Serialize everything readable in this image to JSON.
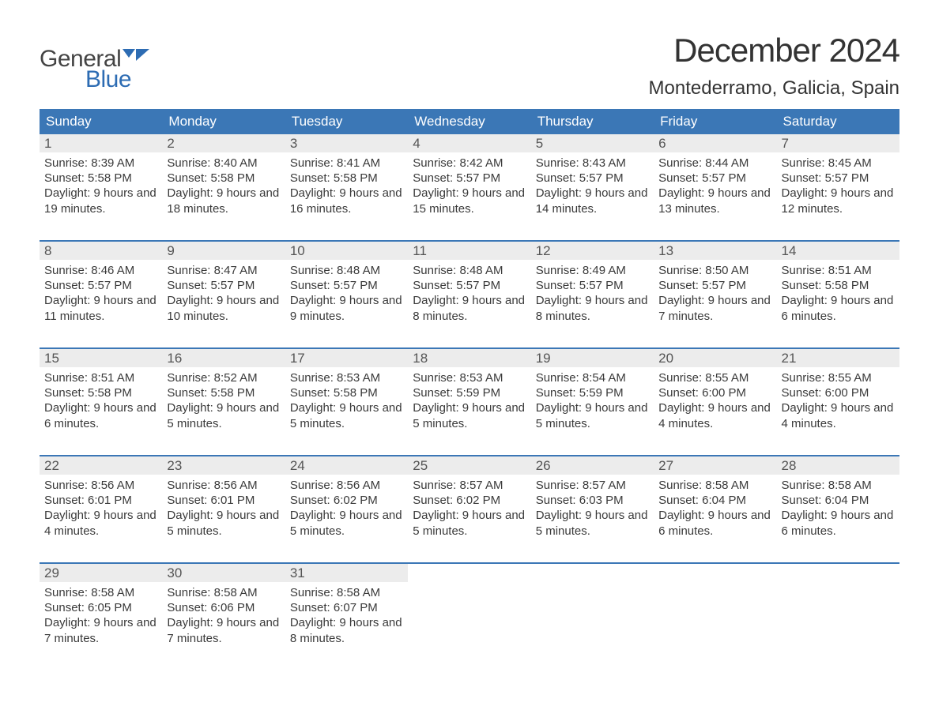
{
  "brand": {
    "text_general": "General",
    "text_blue": "Blue",
    "flag_color": "#2d6cb3"
  },
  "title": "December 2024",
  "location": "Montederramo, Galicia, Spain",
  "colors": {
    "header_bg": "#3b77b6",
    "header_text": "#ffffff",
    "daynum_bg": "#ececec",
    "week_border": "#3b77b6",
    "body_text": "#3a3a3a"
  },
  "day_names": [
    "Sunday",
    "Monday",
    "Tuesday",
    "Wednesday",
    "Thursday",
    "Friday",
    "Saturday"
  ],
  "weeks": [
    [
      {
        "n": 1,
        "sunrise": "8:39 AM",
        "sunset": "5:58 PM",
        "daylight": "9 hours and 19 minutes."
      },
      {
        "n": 2,
        "sunrise": "8:40 AM",
        "sunset": "5:58 PM",
        "daylight": "9 hours and 18 minutes."
      },
      {
        "n": 3,
        "sunrise": "8:41 AM",
        "sunset": "5:58 PM",
        "daylight": "9 hours and 16 minutes."
      },
      {
        "n": 4,
        "sunrise": "8:42 AM",
        "sunset": "5:57 PM",
        "daylight": "9 hours and 15 minutes."
      },
      {
        "n": 5,
        "sunrise": "8:43 AM",
        "sunset": "5:57 PM",
        "daylight": "9 hours and 14 minutes."
      },
      {
        "n": 6,
        "sunrise": "8:44 AM",
        "sunset": "5:57 PM",
        "daylight": "9 hours and 13 minutes."
      },
      {
        "n": 7,
        "sunrise": "8:45 AM",
        "sunset": "5:57 PM",
        "daylight": "9 hours and 12 minutes."
      }
    ],
    [
      {
        "n": 8,
        "sunrise": "8:46 AM",
        "sunset": "5:57 PM",
        "daylight": "9 hours and 11 minutes."
      },
      {
        "n": 9,
        "sunrise": "8:47 AM",
        "sunset": "5:57 PM",
        "daylight": "9 hours and 10 minutes."
      },
      {
        "n": 10,
        "sunrise": "8:48 AM",
        "sunset": "5:57 PM",
        "daylight": "9 hours and 9 minutes."
      },
      {
        "n": 11,
        "sunrise": "8:48 AM",
        "sunset": "5:57 PM",
        "daylight": "9 hours and 8 minutes."
      },
      {
        "n": 12,
        "sunrise": "8:49 AM",
        "sunset": "5:57 PM",
        "daylight": "9 hours and 8 minutes."
      },
      {
        "n": 13,
        "sunrise": "8:50 AM",
        "sunset": "5:57 PM",
        "daylight": "9 hours and 7 minutes."
      },
      {
        "n": 14,
        "sunrise": "8:51 AM",
        "sunset": "5:58 PM",
        "daylight": "9 hours and 6 minutes."
      }
    ],
    [
      {
        "n": 15,
        "sunrise": "8:51 AM",
        "sunset": "5:58 PM",
        "daylight": "9 hours and 6 minutes."
      },
      {
        "n": 16,
        "sunrise": "8:52 AM",
        "sunset": "5:58 PM",
        "daylight": "9 hours and 5 minutes."
      },
      {
        "n": 17,
        "sunrise": "8:53 AM",
        "sunset": "5:58 PM",
        "daylight": "9 hours and 5 minutes."
      },
      {
        "n": 18,
        "sunrise": "8:53 AM",
        "sunset": "5:59 PM",
        "daylight": "9 hours and 5 minutes."
      },
      {
        "n": 19,
        "sunrise": "8:54 AM",
        "sunset": "5:59 PM",
        "daylight": "9 hours and 5 minutes."
      },
      {
        "n": 20,
        "sunrise": "8:55 AM",
        "sunset": "6:00 PM",
        "daylight": "9 hours and 4 minutes."
      },
      {
        "n": 21,
        "sunrise": "8:55 AM",
        "sunset": "6:00 PM",
        "daylight": "9 hours and 4 minutes."
      }
    ],
    [
      {
        "n": 22,
        "sunrise": "8:56 AM",
        "sunset": "6:01 PM",
        "daylight": "9 hours and 4 minutes."
      },
      {
        "n": 23,
        "sunrise": "8:56 AM",
        "sunset": "6:01 PM",
        "daylight": "9 hours and 5 minutes."
      },
      {
        "n": 24,
        "sunrise": "8:56 AM",
        "sunset": "6:02 PM",
        "daylight": "9 hours and 5 minutes."
      },
      {
        "n": 25,
        "sunrise": "8:57 AM",
        "sunset": "6:02 PM",
        "daylight": "9 hours and 5 minutes."
      },
      {
        "n": 26,
        "sunrise": "8:57 AM",
        "sunset": "6:03 PM",
        "daylight": "9 hours and 5 minutes."
      },
      {
        "n": 27,
        "sunrise": "8:58 AM",
        "sunset": "6:04 PM",
        "daylight": "9 hours and 6 minutes."
      },
      {
        "n": 28,
        "sunrise": "8:58 AM",
        "sunset": "6:04 PM",
        "daylight": "9 hours and 6 minutes."
      }
    ],
    [
      {
        "n": 29,
        "sunrise": "8:58 AM",
        "sunset": "6:05 PM",
        "daylight": "9 hours and 7 minutes."
      },
      {
        "n": 30,
        "sunrise": "8:58 AM",
        "sunset": "6:06 PM",
        "daylight": "9 hours and 7 minutes."
      },
      {
        "n": 31,
        "sunrise": "8:58 AM",
        "sunset": "6:07 PM",
        "daylight": "9 hours and 8 minutes."
      },
      null,
      null,
      null,
      null
    ]
  ],
  "labels": {
    "sunrise": "Sunrise: ",
    "sunset": "Sunset: ",
    "daylight": "Daylight: "
  }
}
